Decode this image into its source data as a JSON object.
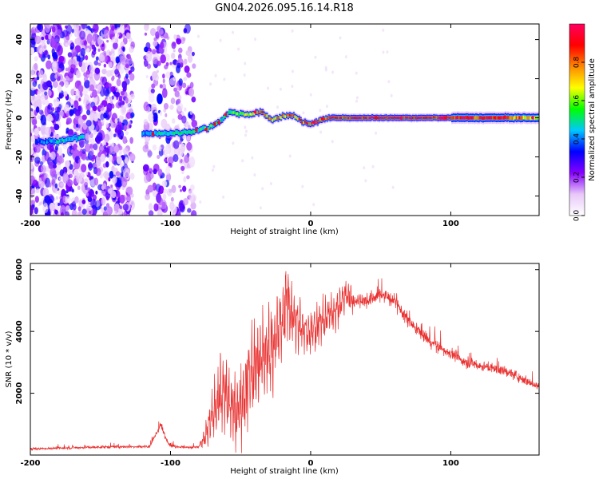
{
  "title": "GN04.2026.095.16.14.R18",
  "colors": {
    "snr_line": "#e8302f",
    "axis": "#000000",
    "background": "#ffffff"
  },
  "chart_data": [
    {
      "type": "heatmap",
      "name": "spectrogram",
      "xlabel": "Height of straight line (km)",
      "ylabel": "Frequency (Hz)",
      "xlim": [
        -200,
        163
      ],
      "ylim": [
        -50,
        48
      ],
      "xticks": [
        "-200",
        "-100",
        "0",
        "100"
      ],
      "xtick_values": [
        -200,
        -100,
        0,
        100
      ],
      "yticks": [
        "40",
        "20",
        "0",
        "-20",
        "-40"
      ],
      "ytick_values": [
        40,
        20,
        0,
        -20,
        -40
      ],
      "colorbar": {
        "label": "Normalized spectral amplitude",
        "range": [
          0,
          1
        ],
        "ticks": [
          "0.0",
          "0.2",
          "0.4",
          "0.6",
          "0.8"
        ],
        "tick_values": [
          0.0,
          0.2,
          0.4,
          0.6,
          0.8
        ],
        "colormap": [
          "#ffffff",
          "#e8c8f8",
          "#8800ff",
          "#0000ff",
          "#00c8ff",
          "#00ff00",
          "#ffff00",
          "#ff8800",
          "#ff0000",
          "#ff0060"
        ]
      },
      "noise_region_km": [
        -200,
        -83
      ],
      "noise_gap_km": [
        -127,
        -118
      ],
      "ridge": {
        "height_km": [
          -196,
          -180,
          -165,
          -118,
          -100,
          -85,
          -72,
          -65,
          -58,
          -50,
          -42,
          -35,
          -28,
          -20,
          -12,
          -6,
          0,
          8,
          14,
          30,
          60,
          100,
          140,
          163
        ],
        "frequency_hz": [
          -12,
          -12,
          -10,
          -8,
          -8,
          -7,
          -5,
          -2,
          3,
          2,
          2,
          3,
          -1,
          1,
          1,
          -2,
          -3,
          -1,
          0,
          0,
          0,
          0,
          0,
          0
        ],
        "amplitude": [
          0.35,
          0.45,
          0.45,
          0.4,
          0.5,
          0.5,
          0.55,
          0.5,
          0.5,
          0.65,
          0.7,
          0.8,
          0.75,
          0.75,
          0.8,
          0.8,
          0.85,
          0.85,
          0.9,
          0.95,
          0.95,
          0.92,
          0.88,
          0.6
        ]
      }
    },
    {
      "type": "line",
      "name": "snr",
      "xlabel": "Height of straight line (km)",
      "ylabel": "SNR (10 * v/v)",
      "xlim": [
        -200,
        163
      ],
      "ylim": [
        0,
        6200
      ],
      "xticks": [
        "-200",
        "-100",
        "0",
        "100"
      ],
      "xtick_values": [
        -200,
        -100,
        0,
        100
      ],
      "yticks": [
        "2000",
        "4000",
        "6000"
      ],
      "ytick_values": [
        2000,
        4000,
        6000
      ],
      "envelope": {
        "x": [
          -200,
          -150,
          -115,
          -110,
          -107,
          -104,
          -100,
          -90,
          -80,
          -75,
          -70,
          -65,
          -60,
          -55,
          -50,
          -45,
          -40,
          -35,
          -30,
          -25,
          -20,
          -17,
          -15,
          -10,
          -5,
          0,
          10,
          20,
          25,
          30,
          40,
          50,
          60,
          70,
          80,
          90,
          100,
          110,
          120,
          130,
          140,
          150,
          163
        ],
        "y": [
          200,
          260,
          280,
          700,
          1000,
          600,
          300,
          250,
          260,
          600,
          1300,
          2000,
          1900,
          1400,
          1600,
          2400,
          2900,
          3100,
          3400,
          3700,
          4300,
          5200,
          4800,
          4200,
          4100,
          4000,
          4400,
          4800,
          5200,
          5000,
          5000,
          5200,
          5000,
          4300,
          3900,
          3500,
          3300,
          3000,
          2900,
          2800,
          2700,
          2500,
          2200
        ],
        "noise": [
          80,
          90,
          90,
          160,
          200,
          150,
          90,
          90,
          110,
          450,
          900,
          1200,
          1300,
          1200,
          1400,
          1500,
          1600,
          1600,
          1700,
          1500,
          1500,
          1300,
          1200,
          1000,
          900,
          800,
          700,
          600,
          550,
          500,
          450,
          450,
          450,
          420,
          400,
          380,
          350,
          330,
          320,
          300,
          300,
          300,
          300
        ]
      }
    }
  ]
}
